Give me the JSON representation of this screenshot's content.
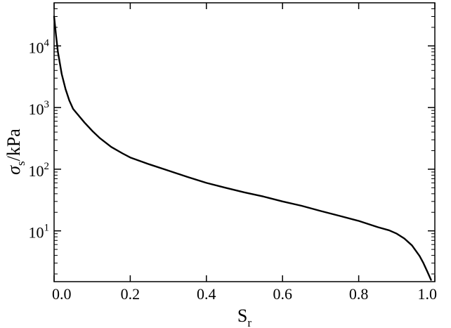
{
  "chart_data": {
    "type": "line",
    "title": "",
    "xlabel": {
      "main": "S",
      "sub": "r"
    },
    "ylabel": {
      "symbol": "σ",
      "sub": "s",
      "unit": "/kPa"
    },
    "xscale": "linear",
    "yscale": "log",
    "xlim": [
      0,
      1
    ],
    "ylim": [
      1.5,
      50000
    ],
    "grid": false,
    "legend": "none",
    "x_ticks": [
      0.0,
      0.2,
      0.4,
      0.6,
      0.8,
      1.0
    ],
    "x_tick_labels": [
      "0.0",
      "0.2",
      "0.4",
      "0.6",
      "0.8",
      "1.0"
    ],
    "y_ticks": [
      10,
      100,
      1000,
      10000
    ],
    "y_tick_labels": [
      {
        "base": "10",
        "exp": "1"
      },
      {
        "base": "10",
        "exp": "2"
      },
      {
        "base": "10",
        "exp": "3"
      },
      {
        "base": "10",
        "exp": "4"
      }
    ],
    "series": [
      {
        "color": "#000000",
        "x": [
          0.0,
          0.005,
          0.01,
          0.02,
          0.03,
          0.04,
          0.05,
          0.06,
          0.08,
          0.1,
          0.12,
          0.15,
          0.18,
          0.2,
          0.25,
          0.3,
          0.35,
          0.4,
          0.45,
          0.5,
          0.55,
          0.6,
          0.65,
          0.7,
          0.75,
          0.8,
          0.85,
          0.88,
          0.9,
          0.92,
          0.94,
          0.96,
          0.97,
          0.98,
          0.99
        ],
        "y": [
          30000,
          15000,
          8000,
          3500,
          2000,
          1300,
          950,
          800,
          570,
          420,
          320,
          230,
          180,
          155,
          120,
          95,
          75,
          60,
          50,
          42,
          36,
          30,
          25.5,
          21,
          17.5,
          14.5,
          11.5,
          10.2,
          9.0,
          7.5,
          5.8,
          3.9,
          3.0,
          2.2,
          1.6
        ]
      }
    ]
  }
}
